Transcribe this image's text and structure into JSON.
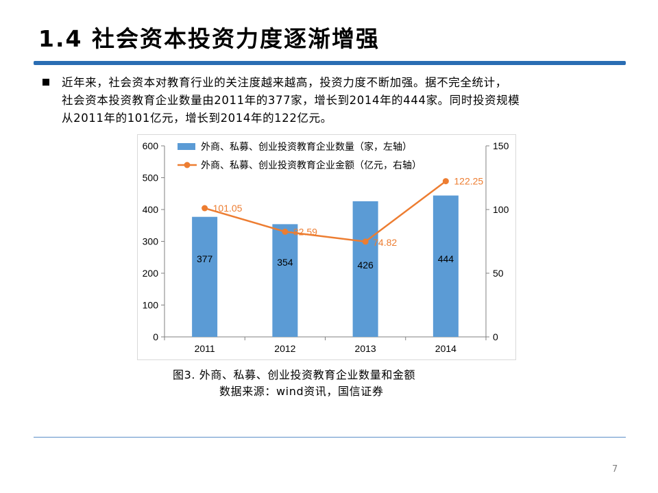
{
  "slide": {
    "title": "1.4 社会资本投资力度逐渐增强",
    "bullet_lines": [
      "近年来，社会资本对教育行业的关注度越来越高，投资力度不断加强。据不完全统计，",
      "社会资本投资教育企业数量由2011年的377家，增长到2014年的444家。同时投资规模",
      "从2011年的101亿元，增长到2014年的122亿元。"
    ],
    "caption": "图3. 外商、私募、创业投资教育企业数量和金额",
    "source": "数据来源：wind资讯，国信证券",
    "page_number": "7"
  },
  "colors": {
    "bar": "#5b9bd5",
    "line": "#ed7d31",
    "accent": "#2a6db3"
  },
  "chart_data": {
    "type": "bar",
    "categories": [
      "2011",
      "2012",
      "2013",
      "2014"
    ],
    "series": [
      {
        "name": "外商、私募、创业投资教育企业数量（家，左轴）",
        "type": "bar",
        "axis": "left",
        "values": [
          377,
          354,
          426,
          444
        ],
        "labels": [
          "377",
          "354",
          "426",
          "444"
        ]
      },
      {
        "name": "外商、私募、创业投资教育企业金额（亿元，右轴）",
        "type": "line",
        "axis": "right",
        "values": [
          101.05,
          82.59,
          74.82,
          122.25
        ],
        "labels": [
          "101.05",
          "82.59",
          "74.82",
          "122.25"
        ]
      }
    ],
    "y_left": {
      "min": 0,
      "max": 600,
      "ticks": [
        "0",
        "100",
        "200",
        "300",
        "400",
        "500",
        "600"
      ]
    },
    "y_right": {
      "min": 0,
      "max": 150,
      "ticks": [
        "0",
        "50",
        "100",
        "150"
      ]
    },
    "grid": false,
    "legend": "top-left"
  }
}
